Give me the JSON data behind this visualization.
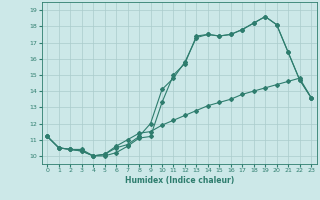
{
  "title": "",
  "xlabel": "Humidex (Indice chaleur)",
  "xlim": [
    -0.5,
    23.5
  ],
  "ylim": [
    9.5,
    19.5
  ],
  "xticks": [
    0,
    1,
    2,
    3,
    4,
    5,
    6,
    7,
    8,
    9,
    10,
    11,
    12,
    13,
    14,
    15,
    16,
    17,
    18,
    19,
    20,
    21,
    22,
    23
  ],
  "yticks": [
    10,
    11,
    12,
    13,
    14,
    15,
    16,
    17,
    18,
    19
  ],
  "line_color": "#2e7d6e",
  "bg_color": "#cce8e8",
  "grid_color": "#aacccc",
  "line1_x": [
    0,
    1,
    2,
    3,
    4,
    5,
    6,
    7,
    8,
    9,
    10,
    11,
    12,
    13,
    14,
    15,
    16,
    17,
    18,
    19,
    20,
    21,
    22,
    23
  ],
  "line1_y": [
    11.2,
    10.5,
    10.4,
    10.4,
    10.0,
    10.1,
    10.5,
    10.7,
    11.2,
    12.0,
    14.1,
    14.8,
    15.8,
    17.3,
    17.5,
    17.4,
    17.5,
    17.8,
    18.2,
    18.6,
    18.1,
    16.4,
    14.7,
    13.6
  ],
  "line2_x": [
    0,
    1,
    2,
    3,
    4,
    5,
    6,
    7,
    8,
    9,
    10,
    11,
    12,
    13,
    14,
    15,
    16,
    17,
    18,
    19,
    20,
    21,
    22,
    23
  ],
  "line2_y": [
    11.2,
    10.5,
    10.4,
    10.3,
    10.0,
    10.0,
    10.2,
    10.6,
    11.1,
    11.2,
    13.3,
    15.0,
    15.7,
    17.4,
    17.5,
    17.4,
    17.5,
    17.8,
    18.2,
    18.6,
    18.1,
    16.4,
    14.7,
    13.6
  ],
  "line3_x": [
    0,
    1,
    2,
    3,
    4,
    5,
    6,
    7,
    8,
    9,
    10,
    11,
    12,
    13,
    14,
    15,
    16,
    17,
    18,
    19,
    20,
    21,
    22,
    23
  ],
  "line3_y": [
    11.2,
    10.5,
    10.4,
    10.3,
    10.0,
    10.1,
    10.6,
    11.0,
    11.4,
    11.5,
    11.9,
    12.2,
    12.5,
    12.8,
    13.1,
    13.3,
    13.5,
    13.8,
    14.0,
    14.2,
    14.4,
    14.6,
    14.8,
    13.6
  ],
  "marker": "D",
  "markersize": 2.0,
  "linewidth": 0.8
}
